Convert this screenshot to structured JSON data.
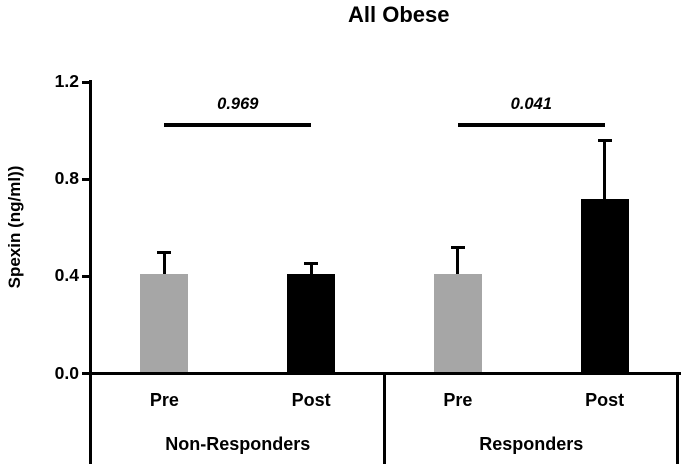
{
  "chart_data": {
    "type": "bar",
    "title": "All Obese",
    "ylabel": "Spexin (ng/ml))",
    "xlabel": "",
    "ylim": [
      0,
      1.2
    ],
    "yticks": [
      0,
      0.4,
      0.8,
      1.2
    ],
    "ytick_labels": [
      "0.0",
      "0.4",
      "0.8",
      "1.2"
    ],
    "grid": false,
    "legend": "none",
    "error_bars": "upward only, SD caps",
    "groups": [
      {
        "label": "Non-Responders",
        "p_value": "0.969",
        "bars": [
          {
            "label": "Pre",
            "value": 0.41,
            "error_up": 0.09,
            "color": "#a6a6a6"
          },
          {
            "label": "Post",
            "value": 0.41,
            "error_up": 0.045,
            "color": "#000000"
          }
        ]
      },
      {
        "label": "Responders",
        "p_value": "0.041",
        "bars": [
          {
            "label": "Pre",
            "value": 0.41,
            "error_up": 0.11,
            "color": "#a6a6a6"
          },
          {
            "label": "Post",
            "value": 0.72,
            "error_up": 0.24,
            "color": "#000000"
          }
        ]
      }
    ],
    "colors": {
      "pre_bar": "#a6a6a6",
      "post_bar": "#000000",
      "axis": "#000000"
    }
  }
}
